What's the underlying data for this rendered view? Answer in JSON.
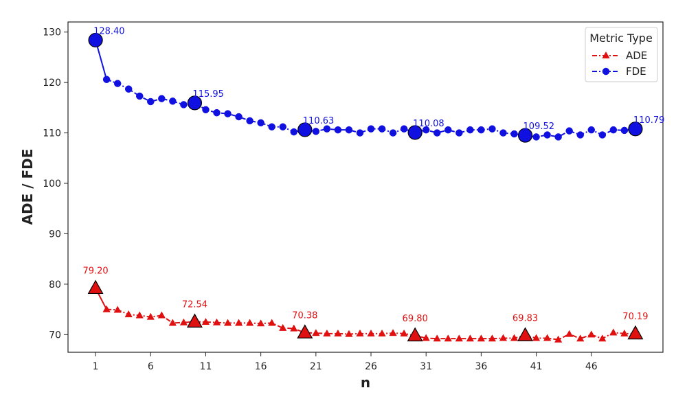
{
  "chart_data": {
    "type": "line",
    "xlabel": "n",
    "ylabel": "ADE / FDE",
    "xlim": [
      -1.5,
      52.5
    ],
    "ylim": [
      66.5,
      132
    ],
    "xticks": [
      1,
      6,
      11,
      16,
      21,
      26,
      31,
      36,
      41,
      46
    ],
    "yticks": [
      70,
      80,
      90,
      100,
      110,
      120,
      130
    ],
    "grid": false,
    "legend": {
      "title": "Metric Type",
      "placement": "top-right",
      "entries": [
        "ADE",
        "FDE"
      ]
    },
    "x": [
      1,
      2,
      3,
      4,
      5,
      6,
      7,
      8,
      9,
      10,
      11,
      12,
      13,
      14,
      15,
      16,
      17,
      18,
      19,
      20,
      21,
      22,
      23,
      24,
      25,
      26,
      27,
      28,
      29,
      30,
      31,
      32,
      33,
      34,
      35,
      36,
      37,
      38,
      39,
      40,
      41,
      42,
      43,
      44,
      45,
      46,
      47,
      48,
      49,
      50
    ],
    "series": [
      {
        "name": "ADE",
        "color": "#e01010",
        "marker": "triangle",
        "values": [
          79.2,
          75.0,
          74.9,
          74.0,
          73.8,
          73.5,
          73.8,
          72.3,
          72.4,
          72.54,
          72.5,
          72.4,
          72.3,
          72.3,
          72.3,
          72.2,
          72.3,
          71.3,
          71.2,
          70.38,
          70.3,
          70.2,
          70.2,
          70.1,
          70.2,
          70.2,
          70.2,
          70.3,
          70.2,
          69.8,
          69.3,
          69.2,
          69.2,
          69.2,
          69.2,
          69.2,
          69.2,
          69.3,
          69.3,
          69.83,
          69.3,
          69.3,
          69.0,
          70.1,
          69.2,
          70.0,
          69.2,
          70.4,
          70.2,
          70.19
        ],
        "highlight_indices": [
          0,
          9,
          19,
          29,
          39,
          49
        ],
        "highlight_labels": [
          "79.20",
          "72.54",
          "70.38",
          "69.80",
          "69.83",
          "70.19"
        ]
      },
      {
        "name": "FDE",
        "color": "#1010e0",
        "marker": "circle",
        "values": [
          128.4,
          120.6,
          119.8,
          118.7,
          117.3,
          116.2,
          116.8,
          116.3,
          115.6,
          115.95,
          114.6,
          114.0,
          113.8,
          113.2,
          112.4,
          112.0,
          111.2,
          111.2,
          110.2,
          110.63,
          110.3,
          110.8,
          110.6,
          110.6,
          110.0,
          110.8,
          110.8,
          110.0,
          110.8,
          110.08,
          110.6,
          110.0,
          110.6,
          110.0,
          110.6,
          110.6,
          110.8,
          110.0,
          109.8,
          109.52,
          109.2,
          109.6,
          109.2,
          110.4,
          109.6,
          110.6,
          109.6,
          110.6,
          110.5,
          110.79
        ],
        "highlight_indices": [
          0,
          9,
          19,
          29,
          39,
          49
        ],
        "highlight_labels": [
          "128.40",
          "115.95",
          "110.63",
          "110.08",
          "109.52",
          "110.79"
        ]
      }
    ]
  }
}
